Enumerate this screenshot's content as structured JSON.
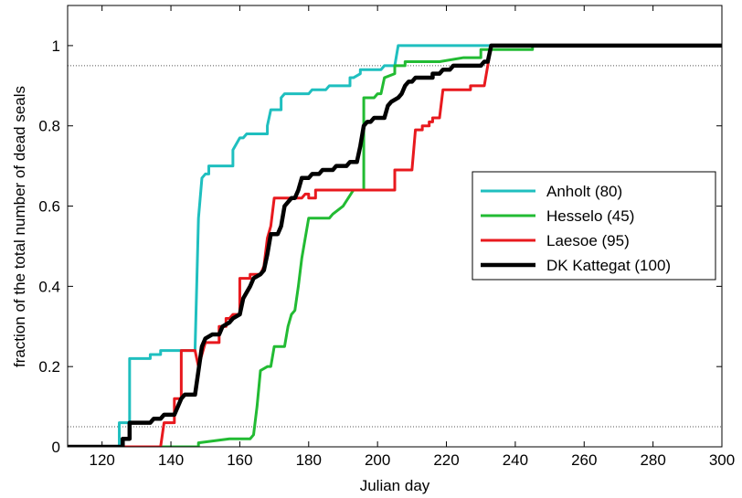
{
  "chart_data": {
    "type": "line",
    "title": "",
    "xlabel": "Julian day",
    "ylabel": "fraction of the total number of dead seals",
    "xlim": [
      110,
      300
    ],
    "ylim": [
      0,
      1.1
    ],
    "xticks": [
      120,
      140,
      160,
      180,
      200,
      220,
      240,
      260,
      280,
      300
    ],
    "yticks": [
      0,
      0.2,
      0.4,
      0.6,
      0.8,
      1
    ],
    "ytick_labels": [
      "0",
      "0.2",
      "0.4",
      "0.6",
      "0.8",
      "1"
    ],
    "grid": false,
    "legend_position": "right",
    "reference_lines": [
      {
        "y": 0.05,
        "style": "dotted",
        "color": "#555555"
      },
      {
        "y": 0.95,
        "style": "dotted",
        "color": "#555555"
      }
    ],
    "series": [
      {
        "name": "Anholt (80)",
        "color": "#1fbfbf",
        "width": 3,
        "points": [
          [
            110,
            0
          ],
          [
            125,
            0
          ],
          [
            125,
            0.06
          ],
          [
            128,
            0.06
          ],
          [
            128,
            0.22
          ],
          [
            131,
            0.22
          ],
          [
            131,
            0.22
          ],
          [
            134,
            0.22
          ],
          [
            134,
            0.23
          ],
          [
            137,
            0.23
          ],
          [
            137,
            0.24
          ],
          [
            147,
            0.24
          ],
          [
            148,
            0.57
          ],
          [
            149,
            0.67
          ],
          [
            150,
            0.68
          ],
          [
            151,
            0.68
          ],
          [
            151,
            0.7
          ],
          [
            155,
            0.7
          ],
          [
            155,
            0.7
          ],
          [
            158,
            0.7
          ],
          [
            158,
            0.74
          ],
          [
            160,
            0.77
          ],
          [
            161,
            0.77
          ],
          [
            162,
            0.78
          ],
          [
            168,
            0.78
          ],
          [
            168,
            0.8
          ],
          [
            169,
            0.84
          ],
          [
            172,
            0.84
          ],
          [
            172,
            0.87
          ],
          [
            173,
            0.88
          ],
          [
            180,
            0.88
          ],
          [
            181,
            0.89
          ],
          [
            185,
            0.89
          ],
          [
            186,
            0.9
          ],
          [
            188,
            0.9
          ],
          [
            189,
            0.9
          ],
          [
            192,
            0.9
          ],
          [
            192,
            0.92
          ],
          [
            193,
            0.92
          ],
          [
            195,
            0.93
          ],
          [
            195,
            0.94
          ],
          [
            201,
            0.94
          ],
          [
            202,
            0.95
          ],
          [
            205,
            0.95
          ],
          [
            206,
            1
          ],
          [
            233,
            1
          ],
          [
            300,
            1
          ]
        ]
      },
      {
        "name": "Hesselo (45)",
        "color": "#22bb33",
        "width": 3,
        "points": [
          [
            110,
            0
          ],
          [
            148,
            0
          ],
          [
            148,
            0.01
          ],
          [
            157,
            0.02
          ],
          [
            163,
            0.02
          ],
          [
            164,
            0.03
          ],
          [
            165,
            0.1
          ],
          [
            166,
            0.19
          ],
          [
            168,
            0.2
          ],
          [
            169,
            0.2
          ],
          [
            170,
            0.25
          ],
          [
            173,
            0.25
          ],
          [
            174,
            0.3
          ],
          [
            175,
            0.33
          ],
          [
            176,
            0.34
          ],
          [
            177,
            0.4
          ],
          [
            178,
            0.47
          ],
          [
            179,
            0.52
          ],
          [
            180,
            0.57
          ],
          [
            186,
            0.57
          ],
          [
            187,
            0.58
          ],
          [
            190,
            0.6
          ],
          [
            193,
            0.64
          ],
          [
            196,
            0.64
          ],
          [
            196,
            0.87
          ],
          [
            199,
            0.87
          ],
          [
            200,
            0.88
          ],
          [
            201,
            0.88
          ],
          [
            202,
            0.92
          ],
          [
            205,
            0.93
          ],
          [
            205,
            0.95
          ],
          [
            208,
            0.95
          ],
          [
            208,
            0.96
          ],
          [
            218,
            0.96
          ],
          [
            225,
            0.97
          ],
          [
            230,
            0.97
          ],
          [
            230,
            0.99
          ],
          [
            245,
            0.99
          ],
          [
            245,
            1
          ],
          [
            300,
            1
          ]
        ]
      },
      {
        "name": "Laesoe (95)",
        "color": "#e8191e",
        "width": 3,
        "points": [
          [
            110,
            0
          ],
          [
            137,
            0
          ],
          [
            138,
            0.06
          ],
          [
            141,
            0.06
          ],
          [
            141,
            0.12
          ],
          [
            143,
            0.12
          ],
          [
            143,
            0.24
          ],
          [
            147,
            0.24
          ],
          [
            148,
            0.2
          ],
          [
            150,
            0.26
          ],
          [
            154,
            0.26
          ],
          [
            154,
            0.3
          ],
          [
            156,
            0.3
          ],
          [
            156,
            0.32
          ],
          [
            157,
            0.32
          ],
          [
            158,
            0.33
          ],
          [
            160,
            0.33
          ],
          [
            160,
            0.42
          ],
          [
            163,
            0.42
          ],
          [
            163,
            0.43
          ],
          [
            166,
            0.43
          ],
          [
            167,
            0.45
          ],
          [
            168,
            0.52
          ],
          [
            169,
            0.55
          ],
          [
            170,
            0.62
          ],
          [
            178,
            0.62
          ],
          [
            179,
            0.63
          ],
          [
            180,
            0.63
          ],
          [
            180,
            0.62
          ],
          [
            182,
            0.62
          ],
          [
            182,
            0.64
          ],
          [
            205,
            0.64
          ],
          [
            205,
            0.69
          ],
          [
            210,
            0.69
          ],
          [
            211,
            0.79
          ],
          [
            213,
            0.79
          ],
          [
            213,
            0.8
          ],
          [
            215,
            0.8
          ],
          [
            215,
            0.81
          ],
          [
            216,
            0.81
          ],
          [
            216,
            0.82
          ],
          [
            218,
            0.82
          ],
          [
            219,
            0.89
          ],
          [
            227,
            0.89
          ],
          [
            227,
            0.9
          ],
          [
            231,
            0.9
          ],
          [
            232,
            0.95
          ],
          [
            233,
            1
          ],
          [
            300,
            1
          ]
        ]
      },
      {
        "name": "DK Kattegat (100)",
        "color": "#000000",
        "width": 4.5,
        "points": [
          [
            110,
            0
          ],
          [
            126,
            0
          ],
          [
            126,
            0.02
          ],
          [
            128,
            0.02
          ],
          [
            128,
            0.06
          ],
          [
            131,
            0.06
          ],
          [
            134,
            0.06
          ],
          [
            135,
            0.07
          ],
          [
            137,
            0.07
          ],
          [
            138,
            0.08
          ],
          [
            141,
            0.08
          ],
          [
            142,
            0.1
          ],
          [
            143,
            0.12
          ],
          [
            144,
            0.13
          ],
          [
            147,
            0.13
          ],
          [
            148,
            0.19
          ],
          [
            149,
            0.25
          ],
          [
            150,
            0.27
          ],
          [
            152,
            0.28
          ],
          [
            154,
            0.28
          ],
          [
            155,
            0.3
          ],
          [
            157,
            0.31
          ],
          [
            158,
            0.32
          ],
          [
            160,
            0.33
          ],
          [
            161,
            0.37
          ],
          [
            163,
            0.4
          ],
          [
            164,
            0.42
          ],
          [
            166,
            0.43
          ],
          [
            167,
            0.44
          ],
          [
            168,
            0.48
          ],
          [
            169,
            0.53
          ],
          [
            171,
            0.53
          ],
          [
            172,
            0.55
          ],
          [
            173,
            0.6
          ],
          [
            175,
            0.62
          ],
          [
            176,
            0.62
          ],
          [
            177,
            0.64
          ],
          [
            178,
            0.67
          ],
          [
            180,
            0.67
          ],
          [
            181,
            0.68
          ],
          [
            183,
            0.68
          ],
          [
            184,
            0.69
          ],
          [
            187,
            0.69
          ],
          [
            188,
            0.7
          ],
          [
            191,
            0.7
          ],
          [
            192,
            0.71
          ],
          [
            194,
            0.71
          ],
          [
            195,
            0.75
          ],
          [
            196,
            0.8
          ],
          [
            197,
            0.81
          ],
          [
            198,
            0.81
          ],
          [
            199,
            0.82
          ],
          [
            202,
            0.82
          ],
          [
            203,
            0.85
          ],
          [
            204,
            0.86
          ],
          [
            206,
            0.87
          ],
          [
            207,
            0.88
          ],
          [
            208,
            0.9
          ],
          [
            209,
            0.91
          ],
          [
            210,
            0.91
          ],
          [
            211,
            0.92
          ],
          [
            216,
            0.92
          ],
          [
            216,
            0.93
          ],
          [
            218,
            0.93
          ],
          [
            219,
            0.94
          ],
          [
            221,
            0.94
          ],
          [
            222,
            0.95
          ],
          [
            230,
            0.95
          ],
          [
            231,
            0.96
          ],
          [
            232,
            0.96
          ],
          [
            233,
            1
          ],
          [
            300,
            1
          ]
        ]
      }
    ]
  }
}
